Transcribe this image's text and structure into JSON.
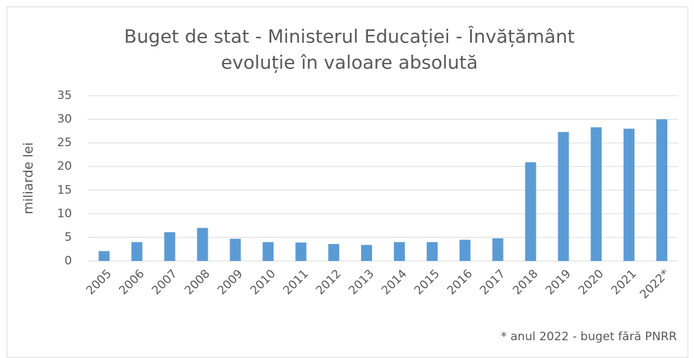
{
  "chart_data": {
    "type": "bar",
    "title": [
      "Buget de stat - Ministerul Educației - Învățământ",
      "evoluție în valoare absolută"
    ],
    "y_label": "miliarde lei",
    "note": "* anul 2022 - buget fără PNRR",
    "categories": [
      "2005",
      "2006",
      "2007",
      "2008",
      "2009",
      "2010",
      "2011",
      "2012",
      "2013",
      "2014",
      "2015",
      "2016",
      "2017",
      "2018",
      "2019",
      "2020",
      "2021",
      "2022*"
    ],
    "values": [
      2.1,
      4.0,
      6.1,
      7.0,
      4.7,
      4.0,
      3.9,
      3.6,
      3.4,
      4.0,
      4.0,
      4.5,
      4.8,
      20.9,
      27.3,
      28.3,
      28.0,
      30.0
    ],
    "color": "#5b9bd5",
    "ylim": [
      0,
      35
    ],
    "yticks": [
      0,
      5,
      10,
      15,
      20,
      25,
      30,
      35
    ],
    "grid": true
  }
}
